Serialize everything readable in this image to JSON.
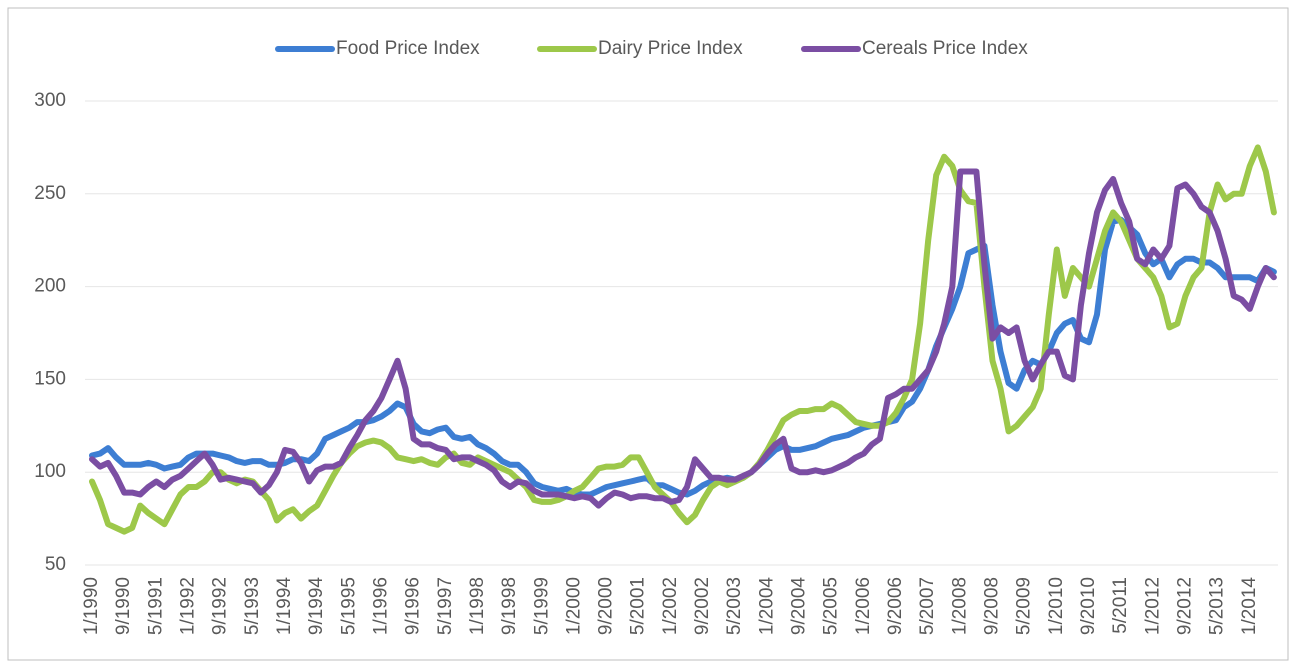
{
  "chart_data": {
    "type": "line",
    "categories": [
      "1/1990",
      null,
      null,
      null,
      "9/1990",
      null,
      null,
      null,
      "5/1991",
      null,
      null,
      null,
      "1/1992",
      null,
      null,
      null,
      "9/1992",
      null,
      null,
      null,
      "5/1993",
      null,
      null,
      null,
      "1/1994",
      null,
      null,
      null,
      "9/1994",
      null,
      null,
      null,
      "5/1995",
      null,
      null,
      null,
      "1/1996",
      null,
      null,
      null,
      "9/1996",
      null,
      null,
      null,
      "5/1997",
      null,
      null,
      null,
      "1/1998",
      null,
      null,
      null,
      "9/1998",
      null,
      null,
      null,
      "5/1999",
      null,
      null,
      null,
      "1/2000",
      null,
      null,
      null,
      "9/2000",
      null,
      null,
      null,
      "5/2001",
      null,
      null,
      null,
      "1/2002",
      null,
      null,
      null,
      "9/2002",
      null,
      null,
      null,
      "5/2003",
      null,
      null,
      null,
      "1/2004",
      null,
      null,
      null,
      "9/2004",
      null,
      null,
      null,
      "5/2005",
      null,
      null,
      null,
      "1/2006",
      null,
      null,
      null,
      "9/2006",
      null,
      null,
      null,
      "5/2007",
      null,
      null,
      null,
      "1/2008",
      null,
      null,
      null,
      "9/2008",
      null,
      null,
      null,
      "5/2009",
      null,
      null,
      null,
      "1/2010",
      null,
      null,
      null,
      "9/2010",
      null,
      null,
      null,
      "5/2011",
      null,
      null,
      null,
      "1/2012",
      null,
      null,
      null,
      "9/2012",
      null,
      null,
      null,
      "5/2013",
      null,
      null,
      null,
      "1/2014",
      null,
      null,
      null
    ],
    "series": [
      {
        "name": "Food Price Index",
        "color": "#3d7ed3",
        "values": [
          109,
          110,
          113,
          108,
          104,
          104,
          104,
          105,
          104,
          102,
          103,
          104,
          108,
          110,
          110,
          110,
          109,
          108,
          106,
          105,
          106,
          106,
          104,
          104,
          105,
          107,
          107,
          106,
          110,
          118,
          120,
          122,
          124,
          127,
          127,
          128,
          130,
          133,
          137,
          135,
          126,
          122,
          121,
          123,
          124,
          119,
          118,
          119,
          115,
          113,
          110,
          106,
          104,
          104,
          100,
          94,
          92,
          91,
          90,
          91,
          89,
          88,
          88,
          90,
          92,
          93,
          94,
          95,
          96,
          97,
          93,
          93,
          91,
          89,
          88,
          90,
          93,
          95,
          96,
          97,
          96,
          97,
          100,
          104,
          108,
          112,
          114,
          112,
          112,
          113,
          114,
          116,
          118,
          119,
          120,
          122,
          124,
          125,
          126,
          127,
          128,
          135,
          138,
          145,
          155,
          168,
          178,
          188,
          200,
          218,
          220,
          222,
          190,
          165,
          148,
          145,
          155,
          160,
          158,
          165,
          175,
          180,
          182,
          172,
          170,
          185,
          220,
          235,
          236,
          232,
          228,
          218,
          212,
          215,
          205,
          212,
          215,
          215,
          213,
          213,
          210,
          205,
          205,
          205,
          205,
          203,
          210,
          208
        ]
      },
      {
        "name": "Dairy Price Index",
        "color": "#9dc84a",
        "values": [
          95,
          85,
          72,
          70,
          68,
          70,
          82,
          78,
          75,
          72,
          80,
          88,
          92,
          92,
          95,
          100,
          100,
          96,
          94,
          96,
          95,
          90,
          85,
          74,
          78,
          80,
          75,
          79,
          82,
          90,
          98,
          105,
          110,
          114,
          116,
          117,
          116,
          113,
          108,
          107,
          106,
          107,
          105,
          104,
          108,
          110,
          105,
          104,
          108,
          106,
          104,
          102,
          100,
          96,
          92,
          85,
          84,
          84,
          85,
          87,
          90,
          92,
          97,
          102,
          103,
          103,
          104,
          108,
          108,
          100,
          92,
          88,
          84,
          78,
          73,
          77,
          85,
          92,
          95,
          93,
          95,
          97,
          100,
          105,
          112,
          120,
          128,
          131,
          133,
          133,
          134,
          134,
          137,
          135,
          131,
          127,
          126,
          125,
          125,
          127,
          132,
          140,
          150,
          180,
          225,
          260,
          270,
          265,
          252,
          246,
          245,
          200,
          160,
          145,
          122,
          125,
          130,
          135,
          145,
          185,
          220,
          195,
          210,
          205,
          200,
          215,
          230,
          240,
          235,
          225,
          215,
          210,
          205,
          195,
          178,
          180,
          195,
          205,
          210,
          240,
          255,
          247,
          250,
          250,
          265,
          275,
          262,
          240
        ]
      },
      {
        "name": "Cereals Price Index",
        "color": "#7b4ea3",
        "values": [
          107,
          103,
          105,
          98,
          89,
          89,
          88,
          92,
          95,
          92,
          96,
          98,
          102,
          106,
          110,
          104,
          96,
          97,
          96,
          95,
          94,
          89,
          93,
          100,
          112,
          111,
          105,
          95,
          101,
          103,
          103,
          105,
          113,
          120,
          128,
          133,
          140,
          150,
          160,
          145,
          118,
          115,
          115,
          113,
          112,
          107,
          108,
          108,
          106,
          104,
          101,
          95,
          92,
          95,
          94,
          90,
          88,
          88,
          88,
          87,
          86,
          87,
          86,
          82,
          86,
          89,
          88,
          86,
          87,
          87,
          86,
          86,
          84,
          85,
          92,
          107,
          102,
          97,
          97,
          96,
          96,
          98,
          100,
          104,
          110,
          115,
          118,
          102,
          100,
          100,
          101,
          100,
          101,
          103,
          105,
          108,
          110,
          115,
          118,
          140,
          142,
          145,
          145,
          150,
          155,
          165,
          180,
          200,
          262,
          262,
          262,
          212,
          172,
          178,
          175,
          178,
          160,
          150,
          158,
          165,
          165,
          152,
          150,
          190,
          218,
          240,
          252,
          258,
          245,
          235,
          215,
          212,
          220,
          215,
          222,
          253,
          255,
          250,
          243,
          240,
          230,
          215,
          195,
          193,
          188,
          200,
          210,
          205
        ]
      }
    ],
    "ylim": [
      50,
      300
    ],
    "yticks": [
      50,
      100,
      150,
      200,
      250,
      300
    ],
    "grid": true,
    "legend": "top"
  }
}
